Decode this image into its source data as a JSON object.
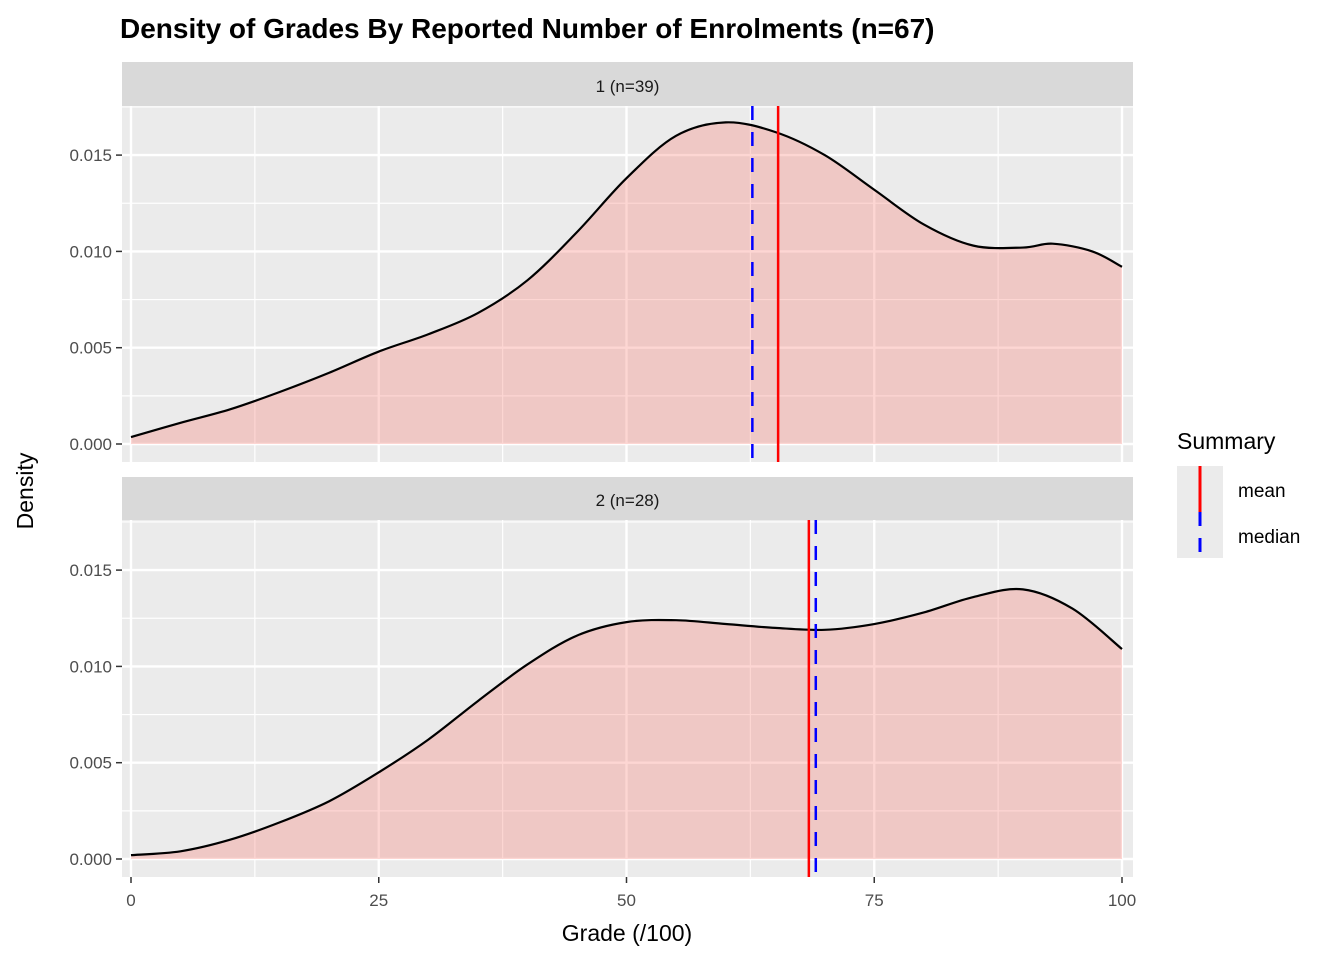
{
  "chart_data": {
    "type": "area",
    "title": "Density of Grades By Reported Number of Enrolments (n=67)",
    "xlabel": "Grade (/100)",
    "ylabel": "Density",
    "xlim": [
      0,
      100
    ],
    "ylim": [
      0,
      0.0175
    ],
    "x_ticks": [
      "0",
      "25",
      "50",
      "75",
      "100"
    ],
    "y_ticks": [
      "0.000",
      "0.005",
      "0.010",
      "0.015"
    ],
    "grid": true,
    "fill_color": "#F8766D",
    "legend": {
      "title": "Summary",
      "placement": "right",
      "entries": [
        {
          "label": "mean",
          "color": "#FF0000",
          "style": "solid"
        },
        {
          "label": "median",
          "color": "#0000FF",
          "style": "dashed"
        }
      ]
    },
    "panels": [
      {
        "label": "1 (n=39)",
        "mean": 65.3,
        "median": 62.7,
        "x": [
          0,
          5,
          10,
          15,
          20,
          25,
          30,
          35,
          40,
          45,
          50,
          55,
          60,
          65,
          70,
          75,
          80,
          85,
          90,
          93,
          97,
          100
        ],
        "y": [
          0.00036,
          0.0011,
          0.0018,
          0.0027,
          0.0037,
          0.0048,
          0.0057,
          0.0068,
          0.0085,
          0.011,
          0.0138,
          0.016,
          0.0167,
          0.0162,
          0.015,
          0.0132,
          0.0114,
          0.0103,
          0.0102,
          0.0104,
          0.01,
          0.0092
        ]
      },
      {
        "label": "2 (n=28)",
        "mean": 68.4,
        "median": 69.1,
        "x": [
          0,
          5,
          10,
          15,
          20,
          25,
          30,
          35,
          40,
          45,
          50,
          55,
          60,
          65,
          70,
          75,
          80,
          85,
          90,
          95,
          100
        ],
        "y": [
          0.0002,
          0.0004,
          0.001,
          0.0019,
          0.003,
          0.0045,
          0.0062,
          0.0082,
          0.0101,
          0.0116,
          0.0123,
          0.0124,
          0.0122,
          0.012,
          0.0119,
          0.0122,
          0.0128,
          0.0136,
          0.014,
          0.013,
          0.0109
        ]
      }
    ]
  }
}
